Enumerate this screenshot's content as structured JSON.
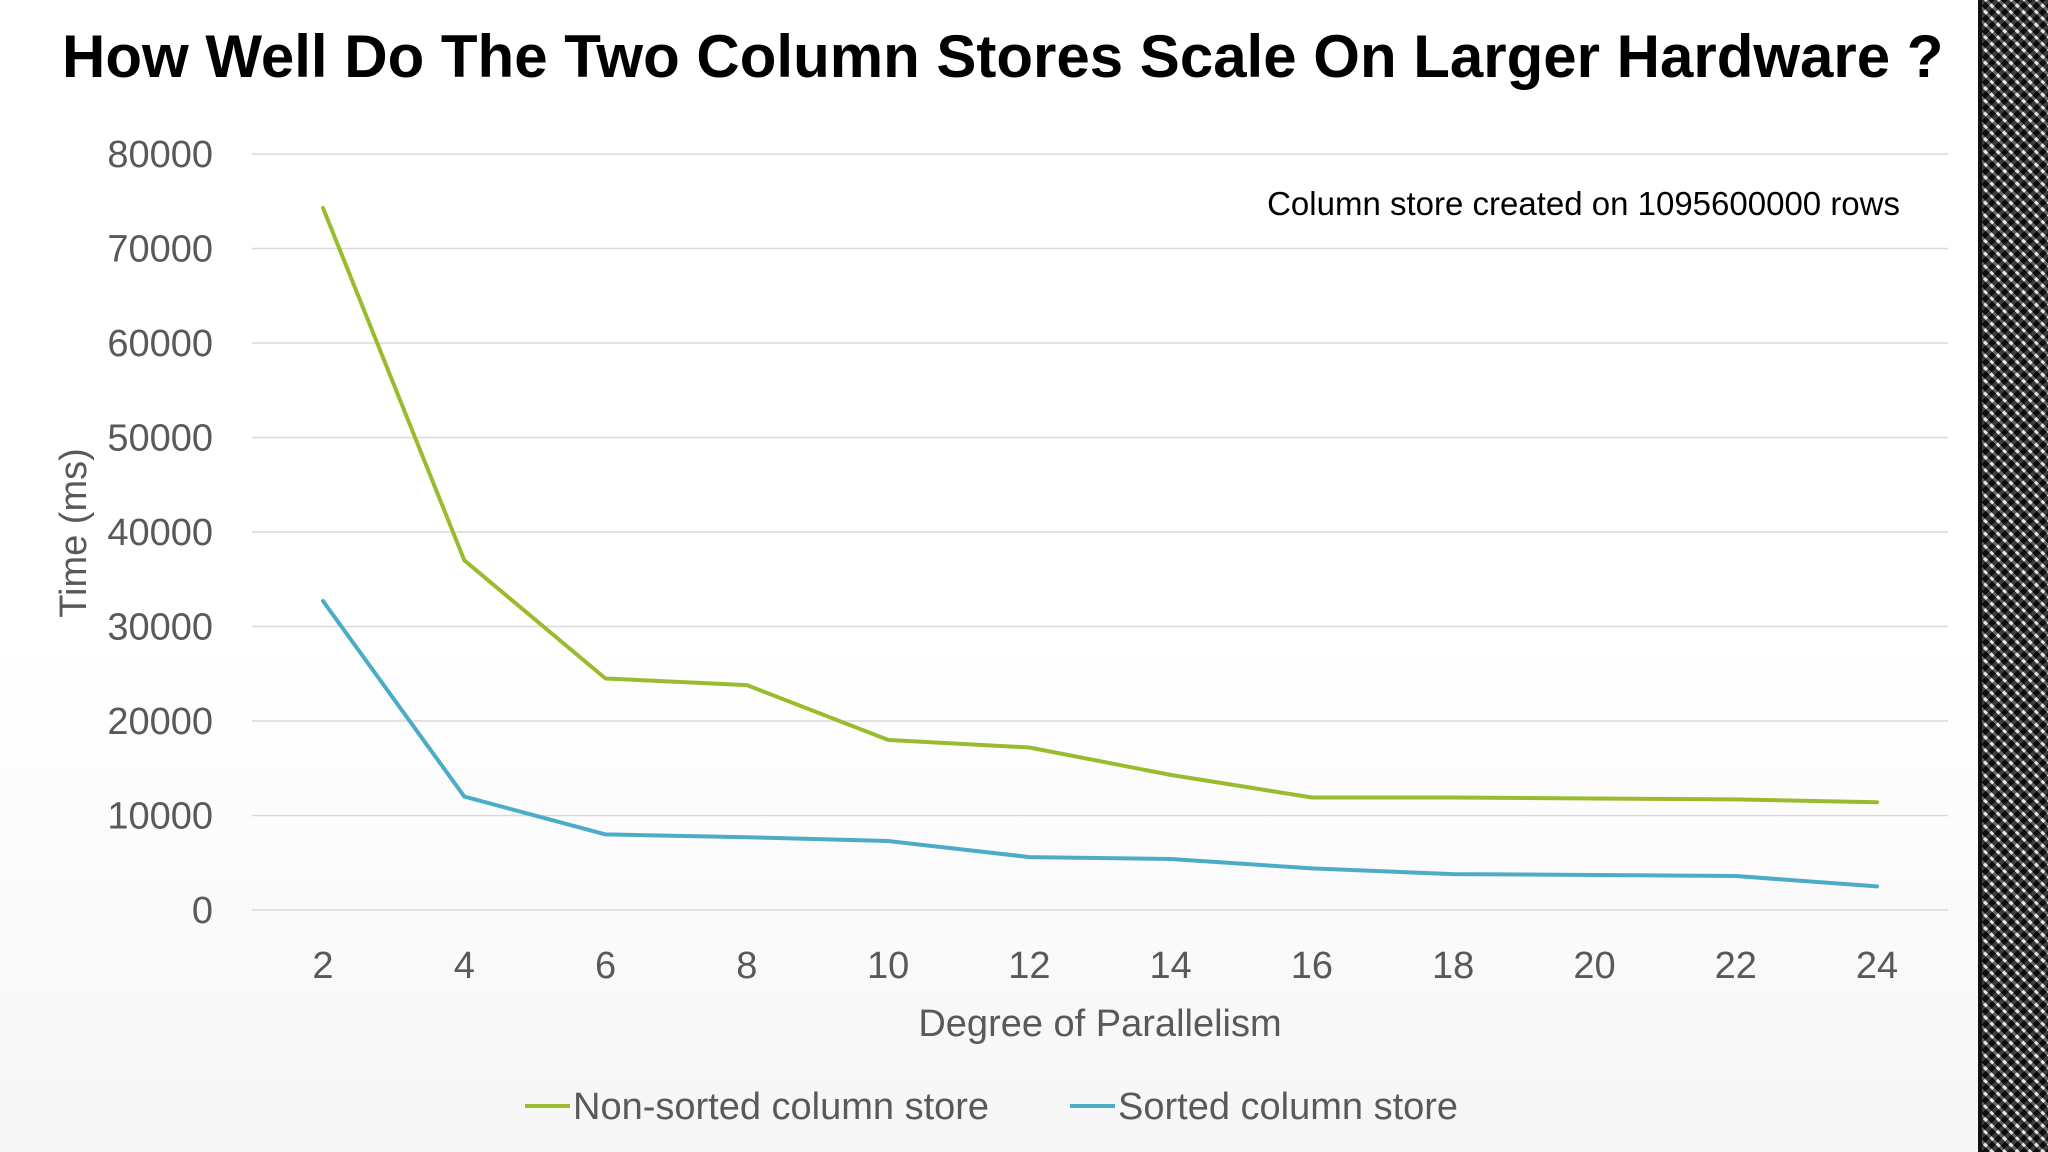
{
  "slide": {
    "title": "How Well Do The Two Column Stores Scale On Larger Hardware ?"
  },
  "chart_data": {
    "type": "line",
    "title": "How Well Do The Two Column Stores Scale On Larger Hardware ?",
    "xlabel": "Degree of Parallelism",
    "ylabel": "Time (ms)",
    "x": [
      2,
      4,
      6,
      8,
      10,
      12,
      14,
      16,
      18,
      20,
      22,
      24
    ],
    "x_tick_labels": [
      "2",
      "4",
      "6",
      "8",
      "10",
      "12",
      "14",
      "16",
      "18",
      "20",
      "22",
      "24"
    ],
    "ylim": [
      0,
      80000
    ],
    "y_ticks": [
      0,
      10000,
      20000,
      30000,
      40000,
      50000,
      60000,
      70000,
      80000
    ],
    "y_tick_labels": [
      "0",
      "10000",
      "20000",
      "30000",
      "40000",
      "50000",
      "60000",
      "70000",
      "80000"
    ],
    "grid": true,
    "legend_position": "bottom",
    "annotation": "Column store created on 1095600000 rows",
    "series": [
      {
        "name": "Non-sorted column store",
        "color": "#9bbb2f",
        "values": [
          74300,
          37000,
          24500,
          23800,
          18000,
          17200,
          14300,
          11900,
          11900,
          11800,
          11700,
          11400
        ]
      },
      {
        "name": "Sorted column store",
        "color": "#4bacc6",
        "values": [
          32700,
          12000,
          8000,
          7700,
          7300,
          5600,
          5400,
          4400,
          3800,
          3700,
          3600,
          2500
        ]
      }
    ]
  }
}
